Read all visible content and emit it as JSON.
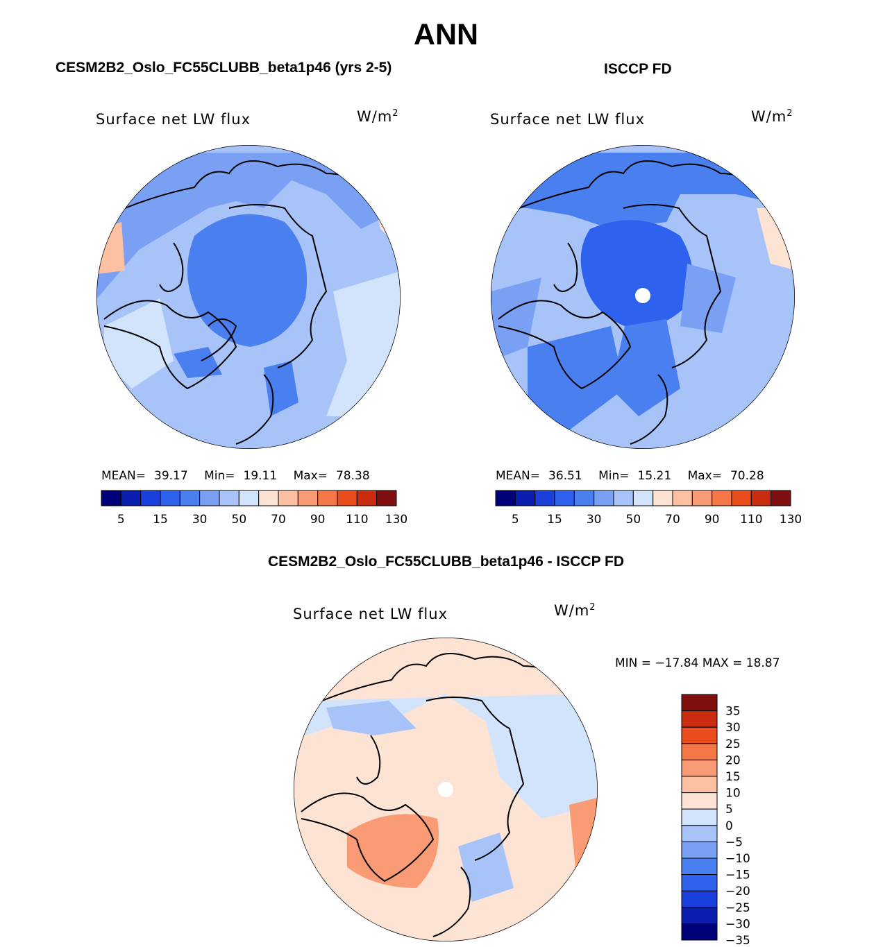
{
  "figure": {
    "title": "ANN",
    "diff_title": "CESM2B2_Oslo_FC55CLUBB_beta1p46 - ISCCP FD"
  },
  "colors": {
    "abs_scale": [
      "#00007a",
      "#0a1fb0",
      "#1a3fdc",
      "#2e62ee",
      "#4a7ff0",
      "#7aa0f3",
      "#a8c3f7",
      "#d2e4fb",
      "#fde3d4",
      "#fcc1a3",
      "#f99b74",
      "#f57646",
      "#ec4d1d",
      "#c92c0f",
      "#801010"
    ],
    "diff_scale": [
      "#00007a",
      "#0a1fb0",
      "#1a3fdc",
      "#2e62ee",
      "#4a7ff0",
      "#7aa0f3",
      "#a8c3f7",
      "#d2e4fb",
      "#fde3d4",
      "#fcc1a3",
      "#f99b74",
      "#f57646",
      "#ec4d1d",
      "#c92c0f",
      "#801010"
    ],
    "coast": "#000000"
  },
  "panels": [
    {
      "id": "model",
      "header": "CESM2B2_Oslo_FC55CLUBB_beta1p46 (yrs 2-5)",
      "variable": "Surface net LW flux",
      "units_base": "W/m",
      "units_exp": "2",
      "stats": {
        "mean_label": "MEAN=",
        "mean": "39.17",
        "min_label": "Min=",
        "min": "19.11",
        "max_label": "Max=",
        "max": "78.38"
      }
    },
    {
      "id": "obs",
      "header": "ISCCP FD",
      "variable": "Surface net LW flux",
      "units_base": "W/m",
      "units_exp": "2",
      "stats": {
        "mean_label": "MEAN=",
        "mean": "36.51",
        "min_label": "Min=",
        "min": "15.21",
        "max_label": "Max=",
        "max": "70.28"
      }
    },
    {
      "id": "diff",
      "variable": "Surface net LW flux",
      "units_base": "W/m",
      "units_exp": "2",
      "stats_text": "MIN = −17.84 MAX =   18.87"
    }
  ],
  "chart_data": [
    {
      "type": "heatmap",
      "title": "Surface net LW flux",
      "subtitle": "CESM2B2_Oslo_FC55CLUBB_beta1p46 (yrs 2-5)",
      "projection": "north polar stereographic",
      "units": "W/m2",
      "mean": 39.17,
      "min": 19.11,
      "max": 78.38,
      "colorbar_levels": [
        5,
        10,
        15,
        20,
        25,
        30,
        40,
        50,
        60,
        70,
        80,
        90,
        100,
        110,
        120,
        130
      ],
      "colorbar_tick_labels": [
        "5",
        "15",
        "30",
        "50",
        "70",
        "90",
        "110",
        "130"
      ]
    },
    {
      "type": "heatmap",
      "title": "Surface net LW flux",
      "subtitle": "ISCCP FD",
      "projection": "north polar stereographic",
      "units": "W/m2",
      "mean": 36.51,
      "min": 15.21,
      "max": 70.28,
      "colorbar_levels": [
        5,
        10,
        15,
        20,
        25,
        30,
        40,
        50,
        60,
        70,
        80,
        90,
        100,
        110,
        120,
        130
      ],
      "colorbar_tick_labels": [
        "5",
        "15",
        "30",
        "50",
        "70",
        "90",
        "110",
        "130"
      ]
    },
    {
      "type": "heatmap",
      "title": "Surface net LW flux",
      "subtitle": "CESM2B2_Oslo_FC55CLUBB_beta1p46 - ISCCP FD",
      "projection": "north polar stereographic",
      "units": "W/m2",
      "min": -17.84,
      "max": 18.87,
      "colorbar_levels": [
        -35,
        -30,
        -25,
        -20,
        -15,
        -10,
        -5,
        0,
        5,
        10,
        15,
        20,
        25,
        30,
        35
      ],
      "colorbar_tick_labels": [
        "35",
        "30",
        "25",
        "20",
        "15",
        "10",
        "5",
        "0",
        "−5",
        "−10",
        "−15",
        "−20",
        "−25",
        "−30",
        "−35"
      ]
    }
  ]
}
